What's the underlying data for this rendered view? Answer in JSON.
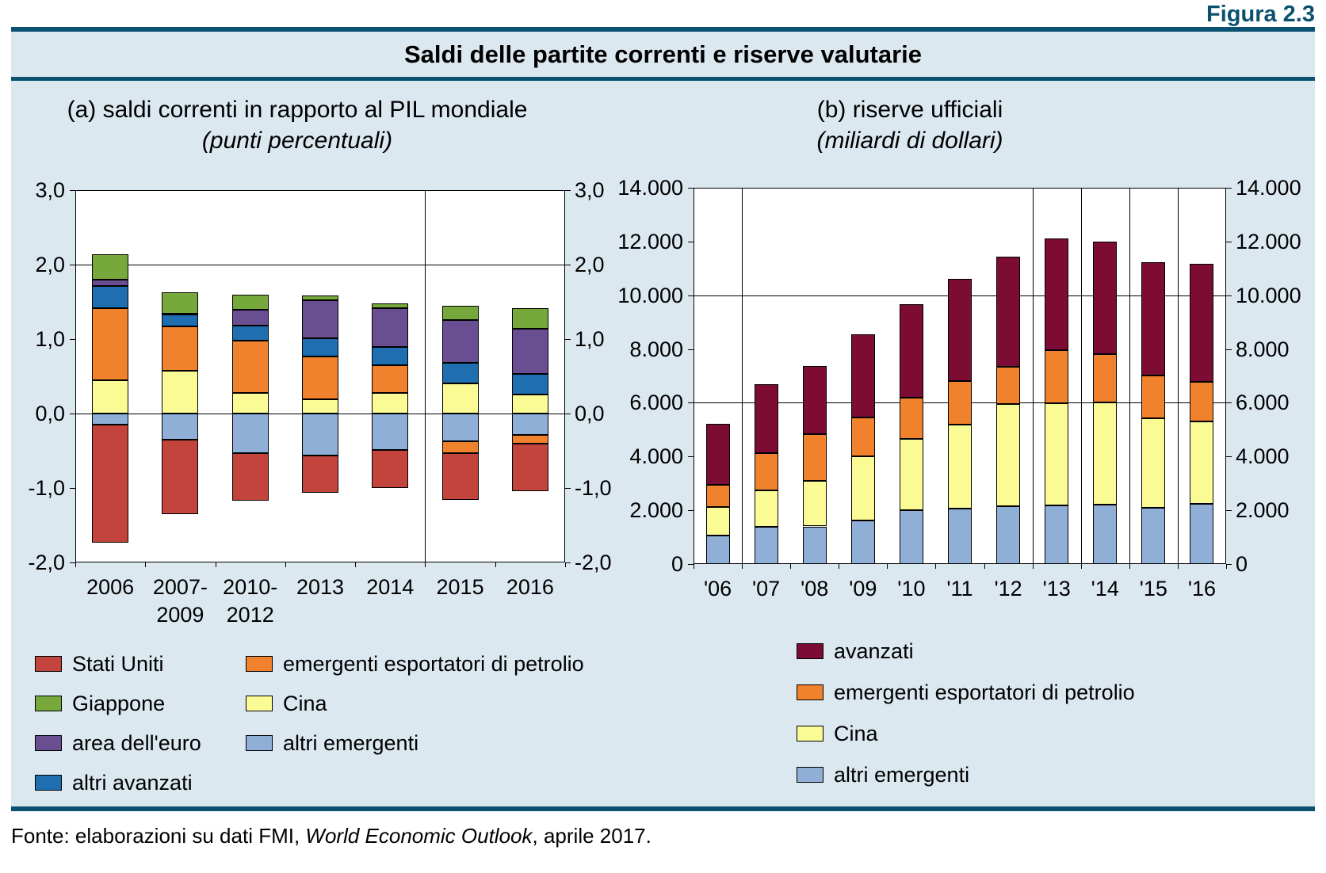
{
  "figure_label": "Figura 2.3",
  "title": "Saldi delle partite correnti e riserve valutarie",
  "footer": {
    "prefix": "Fonte: elaborazioni su dati FMI, ",
    "italic": "World Economic Outlook",
    "suffix": ", aprile 2017."
  },
  "colors": {
    "teal_accent": "#0C5170",
    "figure_background": "#DCE8F0",
    "stati_uniti_red": "#C2443C",
    "giappone_green": "#76A83C",
    "area_euro_purple": "#6A4E92",
    "altri_avanzati_blue": "#1F6FB0",
    "petrolio_orange": "#F0822D",
    "cina_yellow": "#FBFB96",
    "altri_emergenti_lightblue": "#8FAFD7",
    "avanzati_maroon": "#7D0C34"
  },
  "chart_data": [
    {
      "type": "bar",
      "id": "saldi-correnti",
      "title": "(a) saldi correnti in rapporto al PIL mondiale",
      "subtitle": "(punti percentuali)",
      "categories": [
        [
          "2006"
        ],
        [
          "2007-",
          "2009"
        ],
        [
          "2010-",
          "2012"
        ],
        [
          "2013"
        ],
        [
          "2014"
        ],
        [
          "2015"
        ],
        [
          "2016"
        ]
      ],
      "ylim": [
        -2,
        3
      ],
      "yticks": [
        {
          "v": 3,
          "label": "3,0"
        },
        {
          "v": 2,
          "label": "2,0"
        },
        {
          "v": 1,
          "label": "1,0"
        },
        {
          "v": 0,
          "label": "0,0"
        },
        {
          "v": -1,
          "label": "-1,0"
        },
        {
          "v": -2,
          "label": "-2,0"
        }
      ],
      "gridlines": [
        2,
        0
      ],
      "dividers_after": [
        4
      ],
      "stack_positive": [
        "Cina",
        "emergenti esportatori di petrolio",
        "altri avanzati",
        "area dell'euro",
        "Giappone"
      ],
      "stack_negative": [
        "altri emergenti",
        "emergenti esportatori di petrolio",
        "Stati Uniti"
      ],
      "series": [
        {
          "name": "Stati Uniti",
          "color": "#C2443C",
          "values": [
            -1.58,
            -1.0,
            -0.64,
            -0.5,
            -0.51,
            -0.63,
            -0.64
          ]
        },
        {
          "name": "Giappone",
          "color": "#76A83C",
          "values": [
            0.34,
            0.29,
            0.21,
            0.07,
            0.07,
            0.19,
            0.28
          ]
        },
        {
          "name": "area dell'euro",
          "color": "#6A4E92",
          "values": [
            0.09,
            0.01,
            0.21,
            0.51,
            0.52,
            0.58,
            0.61
          ]
        },
        {
          "name": "altri avanzati",
          "color": "#1F6FB0",
          "values": [
            0.3,
            0.16,
            0.2,
            0.24,
            0.24,
            0.28,
            0.27
          ]
        },
        {
          "name": "emergenti esportatori di petrolio",
          "color": "#F0822D",
          "values": [
            0.96,
            0.6,
            0.7,
            0.58,
            0.37,
            -0.16,
            -0.11
          ]
        },
        {
          "name": "Cina",
          "color": "#FBFB96",
          "values": [
            0.45,
            0.57,
            0.28,
            0.19,
            0.28,
            0.4,
            0.26
          ]
        },
        {
          "name": "altri emergenti",
          "color": "#8FAFD7",
          "values": [
            -0.15,
            -0.35,
            -0.53,
            -0.56,
            -0.49,
            -0.37,
            -0.29
          ]
        }
      ],
      "legend": {
        "columns": [
          [
            "Stati Uniti",
            "Giappone",
            "area dell'euro",
            "altri avanzati"
          ],
          [
            "emergenti esportatori di petrolio",
            "Cina",
            "altri emergenti"
          ]
        ]
      }
    },
    {
      "type": "bar",
      "id": "riserve-ufficiali",
      "title": "(b) riserve ufficiali",
      "subtitle": "(miliardi di dollari)",
      "categories": [
        "'06",
        "'07",
        "'08",
        "'09",
        "'10",
        "'11",
        "'12",
        "'13",
        "'14",
        "'15",
        "'16"
      ],
      "ylim": [
        0,
        14000
      ],
      "yticks": [
        {
          "v": 14000,
          "label": "14.000"
        },
        {
          "v": 12000,
          "label": "12.000"
        },
        {
          "v": 10000,
          "label": "10.000"
        },
        {
          "v": 8000,
          "label": "8.000"
        },
        {
          "v": 6000,
          "label": "6.000"
        },
        {
          "v": 4000,
          "label": "4.000"
        },
        {
          "v": 2000,
          "label": "2.000"
        },
        {
          "v": 0,
          "label": "0"
        }
      ],
      "gridlines": [
        10000,
        6000
      ],
      "dividers_after": [
        0,
        6,
        7,
        8,
        9
      ],
      "stack_positive": [
        "altri emergenti",
        "Cina",
        "emergenti esportatori di petrolio",
        "avanzati"
      ],
      "stack_negative": [],
      "series": [
        {
          "name": "altri emergenti",
          "color": "#8FAFD7",
          "values": [
            1050,
            1380,
            1400,
            1630,
            1990,
            2070,
            2140,
            2190,
            2210,
            2090,
            2250
          ]
        },
        {
          "name": "Cina",
          "color": "#FBFB96",
          "values": [
            1070,
            1370,
            1700,
            2380,
            2670,
            3130,
            3820,
            3800,
            3800,
            3330,
            3050
          ]
        },
        {
          "name": "emergenti esportatori di petrolio",
          "color": "#F0822D",
          "values": [
            830,
            1380,
            1730,
            1440,
            1540,
            1620,
            1380,
            1960,
            1810,
            1600,
            1480
          ]
        },
        {
          "name": "avanzati",
          "color": "#7D0C34",
          "values": [
            2270,
            2560,
            2530,
            3090,
            3460,
            3790,
            4090,
            4160,
            4170,
            4210,
            4400
          ]
        }
      ],
      "legend": {
        "columns": [
          [
            "avanzati",
            "emergenti esportatori di petrolio",
            "Cina",
            "altri emergenti"
          ]
        ]
      }
    }
  ]
}
